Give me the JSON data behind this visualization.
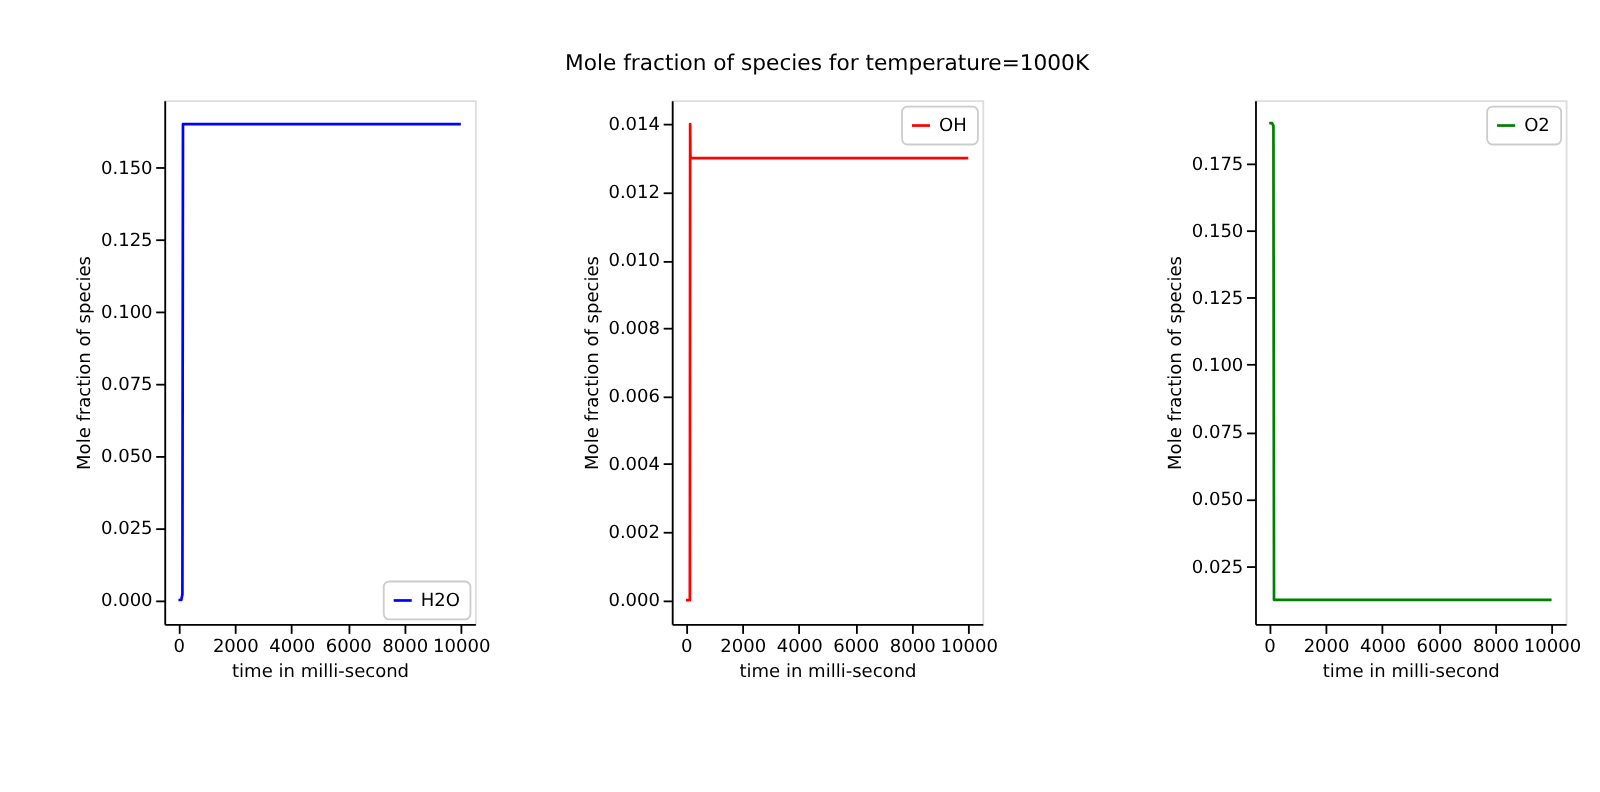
{
  "chart_data": [
    {
      "type": "line",
      "xlabel": "time in milli-second",
      "ylabel": "Mole fraction of species",
      "grid": false,
      "legend": "bottom right",
      "marker": "none",
      "line_style": "solid",
      "xlim": [
        -500,
        10500
      ],
      "ylim": [
        -0.0083,
        0.1733
      ],
      "xticks": [
        0,
        2000,
        4000,
        6000,
        8000,
        10000
      ],
      "yticks": [
        {
          "value": 0,
          "label": "0.000"
        },
        {
          "value": 0.025,
          "label": "0.025"
        },
        {
          "value": 0.05,
          "label": "0.050"
        },
        {
          "value": 0.075,
          "label": "0.075"
        },
        {
          "value": 0.1,
          "label": "0.100"
        },
        {
          "value": 0.125,
          "label": "0.125"
        },
        {
          "value": 0.15,
          "label": "0.150"
        }
      ],
      "series": [
        {
          "name": "H2O",
          "color": "#0000ff",
          "x": [
            0,
            100,
            140,
            160,
            10000
          ],
          "values": [
            0,
            0,
            0.002,
            0.165,
            0.165
          ]
        }
      ]
    },
    {
      "type": "line",
      "title": "Mole fraction of species for temperature=1000K",
      "xlabel": "time in milli-second",
      "ylabel": "Mole fraction of species",
      "grid": false,
      "legend": "top right",
      "marker": "none",
      "line_style": "solid",
      "xlim": [
        -500,
        10500
      ],
      "ylim": [
        -0.0007,
        0.0147
      ],
      "xticks": [
        0,
        2000,
        4000,
        6000,
        8000,
        10000
      ],
      "yticks": [
        {
          "value": 0,
          "label": "0.000"
        },
        {
          "value": 0.002,
          "label": "0.002"
        },
        {
          "value": 0.004,
          "label": "0.004"
        },
        {
          "value": 0.006,
          "label": "0.006"
        },
        {
          "value": 0.008,
          "label": "0.008"
        },
        {
          "value": 0.01,
          "label": "0.010"
        },
        {
          "value": 0.012,
          "label": "0.012"
        },
        {
          "value": 0.014,
          "label": "0.014"
        }
      ],
      "series": [
        {
          "name": "OH",
          "color": "#ff0000",
          "x": [
            0,
            140,
            150,
            160,
            10000
          ],
          "values": [
            0,
            0,
            0.014,
            0.013,
            0.013
          ]
        }
      ]
    },
    {
      "type": "line",
      "xlabel": "time in milli-second",
      "ylabel": "Mole fraction of species",
      "grid": false,
      "legend": "top right",
      "marker": "none",
      "line_style": "solid",
      "xlim": [
        -500,
        10500
      ],
      "ylim": [
        0.0035,
        0.1985
      ],
      "xticks": [
        0,
        2000,
        4000,
        6000,
        8000,
        10000
      ],
      "yticks": [
        {
          "value": 0.025,
          "label": "0.025"
        },
        {
          "value": 0.05,
          "label": "0.050"
        },
        {
          "value": 0.075,
          "label": "0.075"
        },
        {
          "value": 0.1,
          "label": "0.100"
        },
        {
          "value": 0.125,
          "label": "0.125"
        },
        {
          "value": 0.15,
          "label": "0.150"
        },
        {
          "value": 0.175,
          "label": "0.175"
        }
      ],
      "series": [
        {
          "name": "O2",
          "color": "#008000",
          "x": [
            0,
            100,
            150,
            170,
            10000
          ],
          "values": [
            0.19,
            0.19,
            0.189,
            0.0125,
            0.0125
          ]
        }
      ]
    }
  ]
}
